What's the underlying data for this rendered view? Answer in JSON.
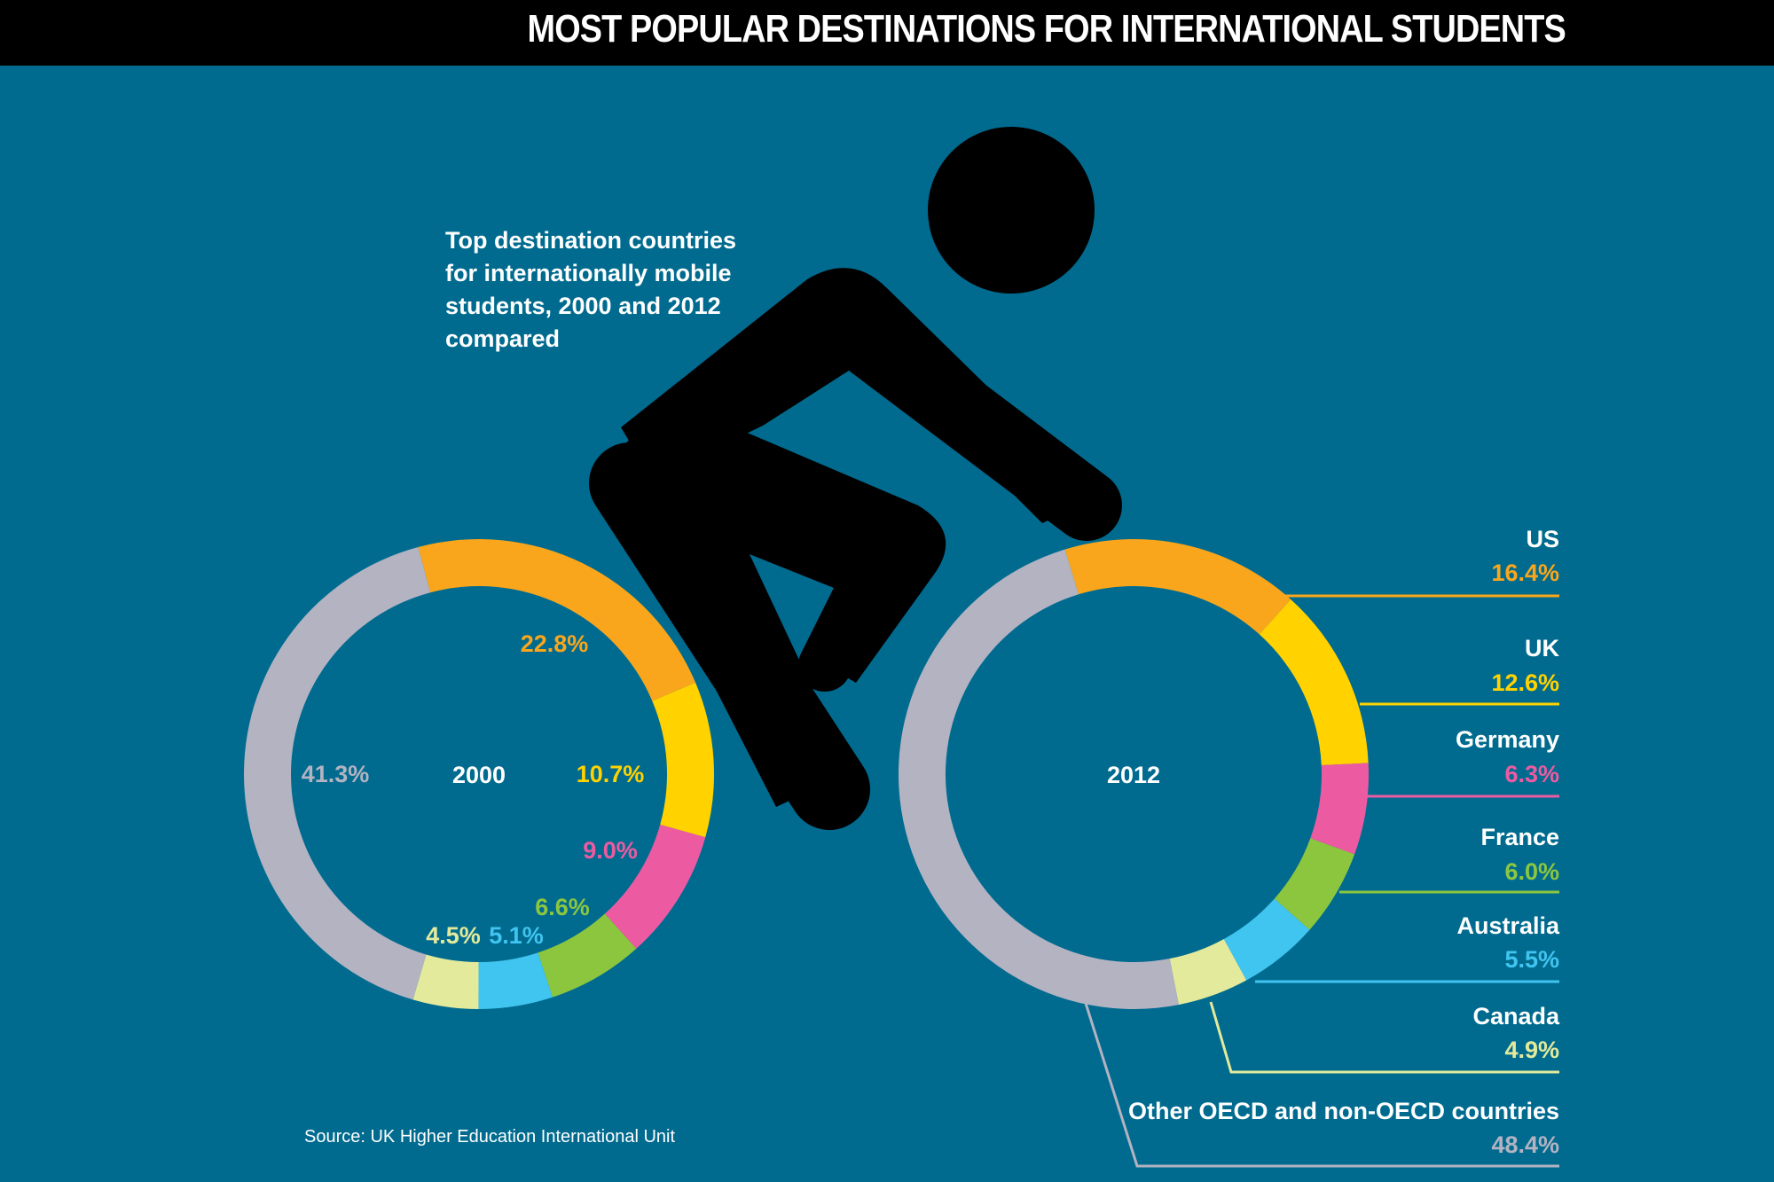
{
  "header": {
    "title": "MOST POPULAR DESTINATIONS FOR INTERNATIONAL STUDENTS"
  },
  "subtitle": "Top destination countries for internationally mobile students, 2000 and 2012 compared",
  "source": "Source: UK Higher Education International Unit",
  "colors": {
    "background": "#006b8f",
    "US": "#f9a61c",
    "UK": "#ffd200",
    "Germany": "#ec5ba1",
    "France": "#8cc63f",
    "Australia": "#40c4f0",
    "Canada": "#e3ea9c",
    "Other": "#b3b3c2"
  },
  "chart_data": [
    {
      "type": "pie",
      "center_label": "2000",
      "slices": [
        {
          "name": "US",
          "value": 22.8,
          "label": "22.8%"
        },
        {
          "name": "UK",
          "value": 10.7,
          "label": "10.7%"
        },
        {
          "name": "Germany",
          "value": 9.0,
          "label": "9.0%"
        },
        {
          "name": "France",
          "value": 6.6,
          "label": "6.6%"
        },
        {
          "name": "Australia",
          "value": 5.1,
          "label": "5.1%"
        },
        {
          "name": "Canada",
          "value": 4.5,
          "label": "4.5%"
        },
        {
          "name": "Other",
          "value": 41.3,
          "label": "41.3%"
        }
      ]
    },
    {
      "type": "pie",
      "center_label": "2012",
      "slices": [
        {
          "name": "US",
          "value": 16.4,
          "legend_name": "US",
          "label": "16.4%"
        },
        {
          "name": "UK",
          "value": 12.6,
          "legend_name": "UK",
          "label": "12.6%"
        },
        {
          "name": "Germany",
          "value": 6.3,
          "legend_name": "Germany",
          "label": "6.3%"
        },
        {
          "name": "France",
          "value": 6.0,
          "legend_name": "France",
          "label": "6.0%"
        },
        {
          "name": "Australia",
          "value": 5.5,
          "legend_name": "Australia",
          "label": "5.5%"
        },
        {
          "name": "Canada",
          "value": 4.9,
          "legend_name": "Canada",
          "label": "4.9%"
        },
        {
          "name": "Other",
          "value": 48.4,
          "legend_name": "Other OECD and non-OECD countries",
          "label": "48.4%"
        }
      ]
    }
  ]
}
